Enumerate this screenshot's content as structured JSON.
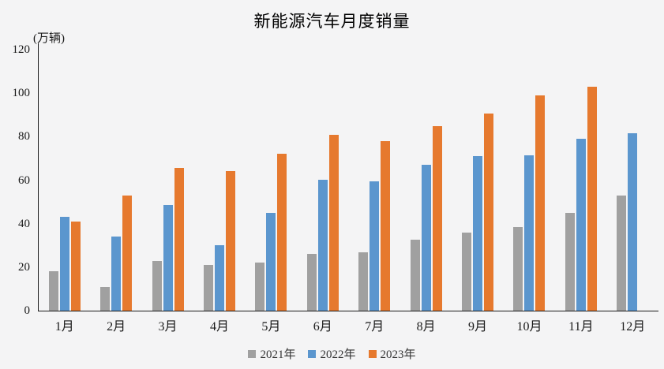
{
  "title": "新能源汽车月度销量",
  "y_axis": {
    "unit_label": "(万辆)",
    "ticks": [
      0,
      20,
      40,
      60,
      80,
      100,
      120
    ]
  },
  "chart_data": {
    "type": "bar",
    "title": "新能源汽车月度销量",
    "ylabel": "(万辆)",
    "xlabel": "",
    "ylim": [
      0,
      120
    ],
    "y_tick_step": 20,
    "grid": false,
    "legend_position": "bottom",
    "categories": [
      "1月",
      "2月",
      "3月",
      "4月",
      "5月",
      "6月",
      "7月",
      "8月",
      "9月",
      "10月",
      "11月",
      "12月"
    ],
    "series": [
      {
        "name": "2021年",
        "color": "#A0A0A0",
        "values": [
          18,
          11,
          23,
          21,
          22,
          26,
          27,
          32.5,
          36,
          38.5,
          45,
          53
        ]
      },
      {
        "name": "2022年",
        "color": "#5B96CE",
        "values": [
          43,
          34,
          48.5,
          30,
          45,
          60,
          59.5,
          67,
          71,
          71.5,
          79,
          81.5
        ]
      },
      {
        "name": "2023年",
        "color": "#E6792E",
        "values": [
          41,
          53,
          65.5,
          64,
          72,
          81,
          78,
          85,
          90.5,
          99,
          103,
          null
        ]
      }
    ]
  },
  "colors": {
    "background": "#F4F4F5",
    "axis": "#1A1A1A",
    "series_2021": "#A0A0A0",
    "series_2022": "#5B96CE",
    "series_2023": "#E6792E"
  }
}
